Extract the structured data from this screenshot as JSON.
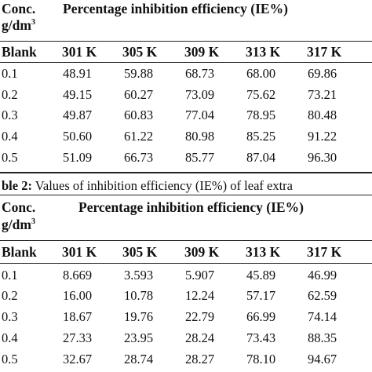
{
  "tables": [
    {
      "conc_label": "Conc.",
      "unit_label": "g/dm",
      "unit_sup": "3",
      "title": "Percentage inhibition efficiency (IE%)",
      "headers": [
        "Blank",
        "301 K",
        "305 K",
        "309 K",
        "313 K",
        "317 K"
      ],
      "rows": [
        [
          "0.1",
          "48.91",
          "59.88",
          "68.73",
          "68.00",
          "69.86"
        ],
        [
          "0.2",
          "49.15",
          "60.27",
          "73.09",
          "75.62",
          "73.21"
        ],
        [
          "0.3",
          "49.87",
          "60.83",
          "77.04",
          "78.95",
          "80.48"
        ],
        [
          "0.4",
          "50.60",
          "61.22",
          "80.98",
          "85.25",
          "91.22"
        ],
        [
          "0.5",
          "51.09",
          "66.73",
          "85.77",
          "87.04",
          "96.30"
        ]
      ]
    },
    {
      "conc_label": "Conc.",
      "unit_label": "g/dm",
      "unit_sup": "3",
      "title": "Percentage inhibition efficiency (IE%)",
      "headers": [
        "Blank",
        "301 K",
        "305 K",
        "309 K",
        "313 K",
        "317 K"
      ],
      "rows": [
        [
          "0.1",
          "8.669",
          "3.593",
          "5.907",
          "45.89",
          "46.99"
        ],
        [
          "0.2",
          "16.00",
          "10.78",
          "12.24",
          "57.17",
          "62.59"
        ],
        [
          "0.3",
          "18.67",
          "19.76",
          "22.79",
          "66.99",
          "74.14"
        ],
        [
          "0.4",
          "27.33",
          "23.95",
          "28.24",
          "73.43",
          "88.35"
        ],
        [
          "0.5",
          "32.67",
          "28.74",
          "28.27",
          "78.10",
          "94.67"
        ]
      ]
    }
  ],
  "caption": {
    "label": "ble 2:",
    "text": " Values of inhibition efficiency (IE%) of leaf extra"
  }
}
